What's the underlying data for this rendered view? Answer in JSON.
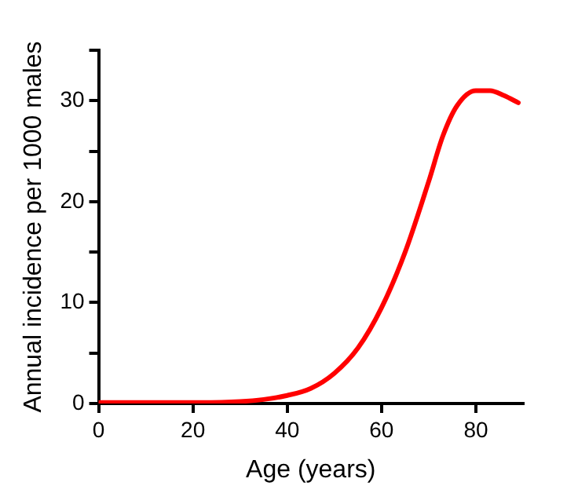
{
  "chart_data": {
    "type": "line",
    "xlabel": "Age (years)",
    "ylabel": "Annual incidence per 1000 males",
    "x": [
      0,
      10,
      20,
      30,
      35,
      40,
      45,
      50,
      55,
      60,
      65,
      70,
      73,
      76,
      80,
      83,
      86,
      89
    ],
    "series": [
      {
        "color": "#ff0000",
        "values": [
          0.1,
          0.1,
          0.1,
          0.2,
          0.4,
          0.8,
          1.5,
          3,
          5.5,
          9.5,
          15,
          22,
          26.5,
          29.5,
          31,
          31,
          30.5,
          29.8
        ]
      }
    ],
    "xlim": [
      0,
      90
    ],
    "xticks": [
      0,
      20,
      40,
      60,
      80
    ],
    "ylim": [
      0,
      35
    ],
    "yticks": [
      0,
      {
        "value": 5,
        "label": null
      },
      10,
      {
        "value": 15,
        "label": null
      },
      20,
      {
        "value": 25,
        "label": null
      },
      30,
      {
        "value": 35,
        "label": null
      }
    ],
    "marker": "none",
    "line_style": "solid"
  }
}
